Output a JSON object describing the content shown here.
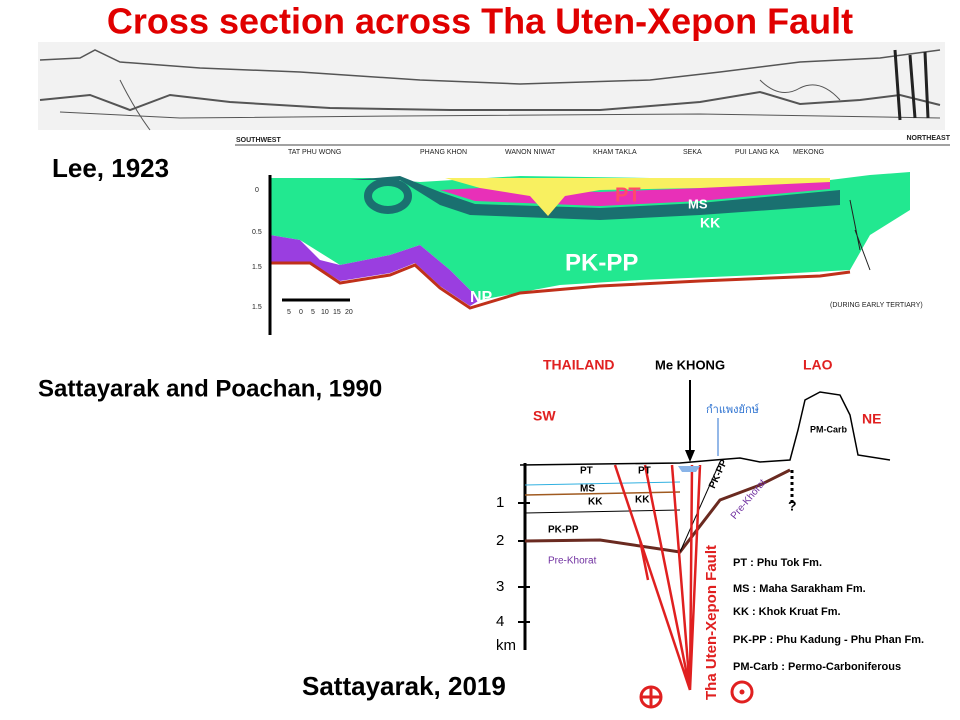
{
  "title": "Cross section across Tha Uten-Xepon Fault",
  "credits": [
    "Lee, 1923",
    "Sattayarak and Poachan, 1990",
    "Sattayarak, 2019"
  ],
  "section_1990": {
    "left_direction": "SOUTHWEST",
    "right_direction": "NORTHEAST",
    "places": [
      "TAT PHU WONG",
      "PHANG KHON",
      "WANON NIWAT",
      "KHAM TAKLA",
      "SEKA",
      "PUI LANG KA",
      "MEKONG"
    ],
    "units": [
      "PT",
      "MS",
      "KK",
      "PK-PP",
      "NP"
    ],
    "depths": [
      "0",
      "0.5",
      "1.5",
      "1.5"
    ],
    "scale": [
      "5",
      "0",
      "5",
      "10",
      "15",
      "20"
    ],
    "note": "(DURING EARLY TERTIARY)"
  },
  "section_2019": {
    "countries": [
      "THAILAND",
      "LAO"
    ],
    "river": "Me KHONG",
    "wall": "กำแพงยักษ์",
    "left_direction": "SW",
    "right_direction": "NE",
    "units": [
      "PT",
      "PT",
      "MS",
      "KK",
      "KK",
      "PK-PP",
      "PK-PP",
      "Pre-Khorat",
      "Pre-Khorat",
      "PM-Carb"
    ],
    "unknown": "?",
    "depths": [
      "1",
      "2",
      "3",
      "4"
    ],
    "depth_unit": "km",
    "fault": "Tha Uten-Xepon Fault",
    "legend": [
      "PT : Phu Tok Fm.",
      "MS : Maha Sarakham Fm.",
      "KK : Khok Kruat Fm.",
      "PK-PP : Phu Kadung - Phu Phan Fm.",
      "PM-Carb : Permo-Carboniferous"
    ]
  }
}
